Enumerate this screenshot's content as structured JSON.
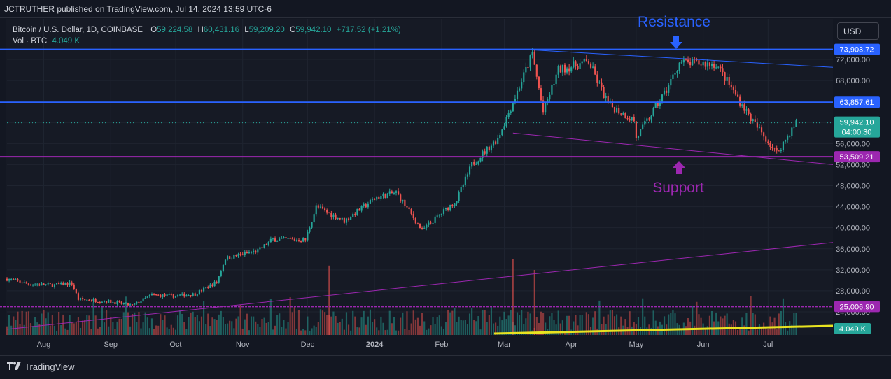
{
  "header": {
    "title": "JCTRUTHER published on TradingView.com, Jul 14, 2024 13:59 UTC-6"
  },
  "legend": {
    "symbol": "Bitcoin / U.S. Dollar, 1D, COINBASE",
    "o_label": "O",
    "o_value": "59,224.58",
    "h_label": "H",
    "h_value": "60,431.16",
    "l_label": "L",
    "l_value": "59,209.20",
    "c_label": "C",
    "c_value": "59,942.10",
    "change": "+717.52 (+1.21%)",
    "vol_label": "Vol · BTC",
    "vol_value": "4.049 K"
  },
  "currency": "USD",
  "footer": {
    "brand": "TradingView",
    "logo_icon": "tradingview-logo-icon"
  },
  "colors": {
    "bg": "#131722",
    "up": "#26a69a",
    "down": "#ef5350",
    "resistance": "#2962ff",
    "support": "#9c27b0",
    "annotation_blue": "#2962ff",
    "annotation_purple": "#9c27b0",
    "volume_ma": "#e8e320"
  },
  "chart_data": {
    "type": "candlestick",
    "symbol": "BTCUSD",
    "interval": "1D",
    "y_range": [
      21000,
      77000
    ],
    "y_ticks": [
      24000,
      28000,
      32000,
      36000,
      40000,
      44000,
      48000,
      52000,
      56000,
      60000,
      64000,
      68000,
      72000
    ],
    "y_tick_labels": [
      "24,000.00",
      "28,000.00",
      "32,000.00",
      "36,000.00",
      "40,000.00",
      "44,000.00",
      "48,000.00",
      "52,000.00",
      "56,000.00",
      "60,000.00",
      "64,000.00",
      "68,000.00",
      "72,000.00"
    ],
    "x_labels": [
      "Aug",
      "Sep",
      "Oct",
      "Nov",
      "Dec",
      "2024",
      "Feb",
      "Mar",
      "Apr",
      "May",
      "Jun",
      "Jul"
    ],
    "x_label_dates": [
      "2023-08-01",
      "2023-09-01",
      "2023-10-01",
      "2023-11-01",
      "2023-12-01",
      "2024-01-01",
      "2024-02-01",
      "2024-03-01",
      "2024-04-01",
      "2024-05-01",
      "2024-06-01",
      "2024-07-01"
    ],
    "date_range": [
      "2023-07-15",
      "2024-07-14"
    ],
    "close_path": [
      [
        "2023-07-15",
        30300
      ],
      [
        "2023-07-25",
        29300
      ],
      [
        "2023-08-05",
        29100
      ],
      [
        "2023-08-14",
        29400
      ],
      [
        "2023-08-17",
        26400
      ],
      [
        "2023-08-31",
        26000
      ],
      [
        "2023-09-11",
        25200
      ],
      [
        "2023-09-20",
        27200
      ],
      [
        "2023-09-30",
        27000
      ],
      [
        "2023-10-10",
        27400
      ],
      [
        "2023-10-20",
        29700
      ],
      [
        "2023-10-24",
        34200
      ],
      [
        "2023-11-08",
        35600
      ],
      [
        "2023-11-15",
        37800
      ],
      [
        "2023-11-30",
        37700
      ],
      [
        "2023-12-05",
        44000
      ],
      [
        "2023-12-18",
        41300
      ],
      [
        "2024-01-02",
        45800
      ],
      [
        "2024-01-11",
        46700
      ],
      [
        "2024-01-23",
        39500
      ],
      [
        "2024-02-08",
        45300
      ],
      [
        "2024-02-15",
        52000
      ],
      [
        "2024-02-27",
        57000
      ],
      [
        "2024-03-05",
        63800
      ],
      [
        "2024-03-14",
        73100
      ],
      [
        "2024-03-19",
        62000
      ],
      [
        "2024-03-26",
        70000
      ],
      [
        "2024-04-09",
        71600
      ],
      [
        "2024-04-18",
        63500
      ],
      [
        "2024-04-30",
        60400
      ],
      [
        "2024-05-01",
        57000
      ],
      [
        "2024-05-15",
        66200
      ],
      [
        "2024-05-21",
        71400
      ],
      [
        "2024-06-07",
        71100
      ],
      [
        "2024-06-24",
        60200
      ],
      [
        "2024-07-05",
        54200
      ],
      [
        "2024-07-14",
        59942
      ]
    ],
    "volume_unit": "K BTC",
    "volume_highlights": [
      [
        "2024-03-05",
        35.0
      ],
      [
        "2023-12-11",
        32.0
      ],
      [
        "2024-03-15",
        30.0
      ]
    ],
    "horizontal_levels": [
      {
        "value": 73903.72,
        "label": "73,903.72",
        "color": "#2962ff",
        "name": "Resistance"
      },
      {
        "value": 63857.61,
        "label": "63,857.61",
        "color": "#2962ff"
      },
      {
        "value": 53509.21,
        "label": "53,509.21",
        "color": "#9c27b0",
        "name": "Support"
      },
      {
        "value": 25006.9,
        "label": "25,006.90",
        "color": "#9c27b0"
      }
    ],
    "trend_lines": [
      {
        "name": "resistance-trendline",
        "from": [
          "2024-03-14",
          73800
        ],
        "to": [
          "2024-07-31",
          70500
        ],
        "color": "#2962ff"
      },
      {
        "name": "support-trendline",
        "from": [
          "2024-03-05",
          58000
        ],
        "to": [
          "2024-07-31",
          52000
        ],
        "color": "#9c27b0"
      },
      {
        "name": "long-trendline",
        "from": [
          "2023-07-15",
          20700
        ],
        "to": [
          "2024-07-31",
          37200
        ],
        "color": "#9c27b0"
      }
    ],
    "last_price": {
      "value": 59942.1,
      "label": "59,942.10",
      "countdown": "04:00:30"
    },
    "annotations": [
      {
        "text": "Resistance",
        "color": "#2962ff"
      },
      {
        "text": "Support",
        "color": "#9c27b0"
      }
    ],
    "volume_badge": "4.049 K"
  }
}
